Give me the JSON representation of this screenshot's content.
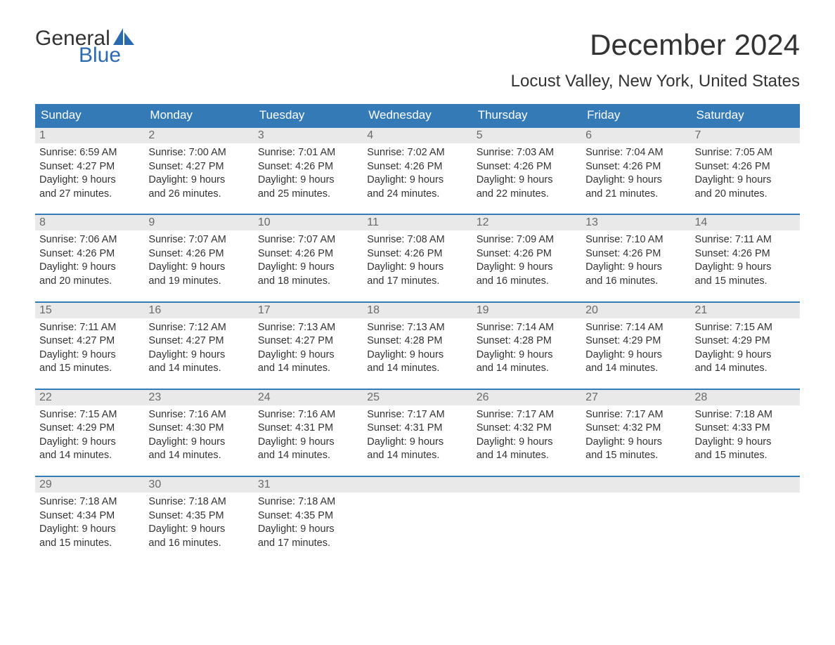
{
  "logo": {
    "general": "General",
    "blue": "Blue"
  },
  "title": "December 2024",
  "location": "Locust Valley, New York, United States",
  "colors": {
    "header_bg": "#337ab7",
    "header_text": "#ffffff",
    "daynum_bg": "#e9e9e9",
    "daynum_text": "#6a6a6a",
    "body_text": "#333333",
    "logo_blue": "#2a6bb0",
    "week_border": "#337ab7",
    "page_bg": "#ffffff"
  },
  "typography": {
    "title_fontsize": 42,
    "location_fontsize": 24,
    "weekday_fontsize": 17,
    "daynum_fontsize": 16,
    "body_fontsize": 14.5,
    "font_family": "Arial"
  },
  "weekdays": [
    "Sunday",
    "Monday",
    "Tuesday",
    "Wednesday",
    "Thursday",
    "Friday",
    "Saturday"
  ],
  "weeks": [
    [
      {
        "n": "1",
        "sunrise": "Sunrise: 6:59 AM",
        "sunset": "Sunset: 4:27 PM",
        "d1": "Daylight: 9 hours",
        "d2": "and 27 minutes."
      },
      {
        "n": "2",
        "sunrise": "Sunrise: 7:00 AM",
        "sunset": "Sunset: 4:27 PM",
        "d1": "Daylight: 9 hours",
        "d2": "and 26 minutes."
      },
      {
        "n": "3",
        "sunrise": "Sunrise: 7:01 AM",
        "sunset": "Sunset: 4:26 PM",
        "d1": "Daylight: 9 hours",
        "d2": "and 25 minutes."
      },
      {
        "n": "4",
        "sunrise": "Sunrise: 7:02 AM",
        "sunset": "Sunset: 4:26 PM",
        "d1": "Daylight: 9 hours",
        "d2": "and 24 minutes."
      },
      {
        "n": "5",
        "sunrise": "Sunrise: 7:03 AM",
        "sunset": "Sunset: 4:26 PM",
        "d1": "Daylight: 9 hours",
        "d2": "and 22 minutes."
      },
      {
        "n": "6",
        "sunrise": "Sunrise: 7:04 AM",
        "sunset": "Sunset: 4:26 PM",
        "d1": "Daylight: 9 hours",
        "d2": "and 21 minutes."
      },
      {
        "n": "7",
        "sunrise": "Sunrise: 7:05 AM",
        "sunset": "Sunset: 4:26 PM",
        "d1": "Daylight: 9 hours",
        "d2": "and 20 minutes."
      }
    ],
    [
      {
        "n": "8",
        "sunrise": "Sunrise: 7:06 AM",
        "sunset": "Sunset: 4:26 PM",
        "d1": "Daylight: 9 hours",
        "d2": "and 20 minutes."
      },
      {
        "n": "9",
        "sunrise": "Sunrise: 7:07 AM",
        "sunset": "Sunset: 4:26 PM",
        "d1": "Daylight: 9 hours",
        "d2": "and 19 minutes."
      },
      {
        "n": "10",
        "sunrise": "Sunrise: 7:07 AM",
        "sunset": "Sunset: 4:26 PM",
        "d1": "Daylight: 9 hours",
        "d2": "and 18 minutes."
      },
      {
        "n": "11",
        "sunrise": "Sunrise: 7:08 AM",
        "sunset": "Sunset: 4:26 PM",
        "d1": "Daylight: 9 hours",
        "d2": "and 17 minutes."
      },
      {
        "n": "12",
        "sunrise": "Sunrise: 7:09 AM",
        "sunset": "Sunset: 4:26 PM",
        "d1": "Daylight: 9 hours",
        "d2": "and 16 minutes."
      },
      {
        "n": "13",
        "sunrise": "Sunrise: 7:10 AM",
        "sunset": "Sunset: 4:26 PM",
        "d1": "Daylight: 9 hours",
        "d2": "and 16 minutes."
      },
      {
        "n": "14",
        "sunrise": "Sunrise: 7:11 AM",
        "sunset": "Sunset: 4:26 PM",
        "d1": "Daylight: 9 hours",
        "d2": "and 15 minutes."
      }
    ],
    [
      {
        "n": "15",
        "sunrise": "Sunrise: 7:11 AM",
        "sunset": "Sunset: 4:27 PM",
        "d1": "Daylight: 9 hours",
        "d2": "and 15 minutes."
      },
      {
        "n": "16",
        "sunrise": "Sunrise: 7:12 AM",
        "sunset": "Sunset: 4:27 PM",
        "d1": "Daylight: 9 hours",
        "d2": "and 14 minutes."
      },
      {
        "n": "17",
        "sunrise": "Sunrise: 7:13 AM",
        "sunset": "Sunset: 4:27 PM",
        "d1": "Daylight: 9 hours",
        "d2": "and 14 minutes."
      },
      {
        "n": "18",
        "sunrise": "Sunrise: 7:13 AM",
        "sunset": "Sunset: 4:28 PM",
        "d1": "Daylight: 9 hours",
        "d2": "and 14 minutes."
      },
      {
        "n": "19",
        "sunrise": "Sunrise: 7:14 AM",
        "sunset": "Sunset: 4:28 PM",
        "d1": "Daylight: 9 hours",
        "d2": "and 14 minutes."
      },
      {
        "n": "20",
        "sunrise": "Sunrise: 7:14 AM",
        "sunset": "Sunset: 4:29 PM",
        "d1": "Daylight: 9 hours",
        "d2": "and 14 minutes."
      },
      {
        "n": "21",
        "sunrise": "Sunrise: 7:15 AM",
        "sunset": "Sunset: 4:29 PM",
        "d1": "Daylight: 9 hours",
        "d2": "and 14 minutes."
      }
    ],
    [
      {
        "n": "22",
        "sunrise": "Sunrise: 7:15 AM",
        "sunset": "Sunset: 4:29 PM",
        "d1": "Daylight: 9 hours",
        "d2": "and 14 minutes."
      },
      {
        "n": "23",
        "sunrise": "Sunrise: 7:16 AM",
        "sunset": "Sunset: 4:30 PM",
        "d1": "Daylight: 9 hours",
        "d2": "and 14 minutes."
      },
      {
        "n": "24",
        "sunrise": "Sunrise: 7:16 AM",
        "sunset": "Sunset: 4:31 PM",
        "d1": "Daylight: 9 hours",
        "d2": "and 14 minutes."
      },
      {
        "n": "25",
        "sunrise": "Sunrise: 7:17 AM",
        "sunset": "Sunset: 4:31 PM",
        "d1": "Daylight: 9 hours",
        "d2": "and 14 minutes."
      },
      {
        "n": "26",
        "sunrise": "Sunrise: 7:17 AM",
        "sunset": "Sunset: 4:32 PM",
        "d1": "Daylight: 9 hours",
        "d2": "and 14 minutes."
      },
      {
        "n": "27",
        "sunrise": "Sunrise: 7:17 AM",
        "sunset": "Sunset: 4:32 PM",
        "d1": "Daylight: 9 hours",
        "d2": "and 15 minutes."
      },
      {
        "n": "28",
        "sunrise": "Sunrise: 7:18 AM",
        "sunset": "Sunset: 4:33 PM",
        "d1": "Daylight: 9 hours",
        "d2": "and 15 minutes."
      }
    ],
    [
      {
        "n": "29",
        "sunrise": "Sunrise: 7:18 AM",
        "sunset": "Sunset: 4:34 PM",
        "d1": "Daylight: 9 hours",
        "d2": "and 15 minutes."
      },
      {
        "n": "30",
        "sunrise": "Sunrise: 7:18 AM",
        "sunset": "Sunset: 4:35 PM",
        "d1": "Daylight: 9 hours",
        "d2": "and 16 minutes."
      },
      {
        "n": "31",
        "sunrise": "Sunrise: 7:18 AM",
        "sunset": "Sunset: 4:35 PM",
        "d1": "Daylight: 9 hours",
        "d2": "and 17 minutes."
      },
      {
        "empty": true
      },
      {
        "empty": true
      },
      {
        "empty": true
      },
      {
        "empty": true
      }
    ]
  ]
}
